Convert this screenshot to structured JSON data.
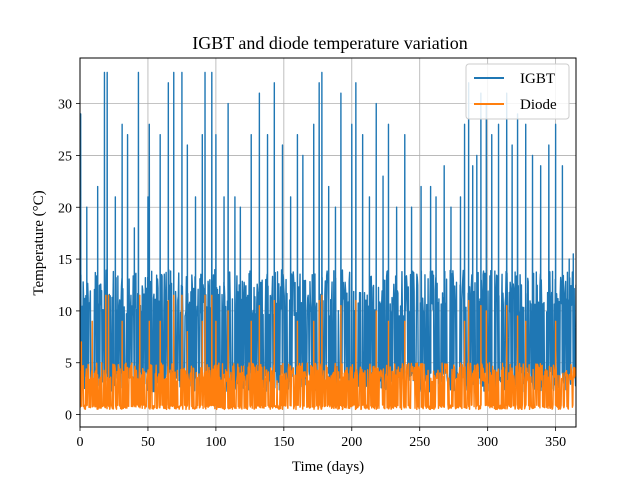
{
  "chart_data": {
    "type": "line",
    "title": "IGBT and diode temperature variation",
    "xlabel": "Time (days)",
    "ylabel": "Temperature (°C)",
    "xlim": [
      0,
      365
    ],
    "ylim": [
      -1.2,
      34.4
    ],
    "xticks": [
      0,
      50,
      100,
      150,
      200,
      250,
      300,
      350
    ],
    "yticks": [
      0,
      5,
      10,
      15,
      20,
      25,
      30
    ],
    "grid": true,
    "legend_position": "top-right",
    "series": [
      {
        "name": "IGBT",
        "color": "#1f77b4",
        "baseline": 4,
        "typical_peak": 14,
        "peaks": [
          {
            "x": 0.5,
            "y": 29
          },
          {
            "x": 5,
            "y": 20
          },
          {
            "x": 13,
            "y": 22
          },
          {
            "x": 18,
            "y": 33
          },
          {
            "x": 20,
            "y": 33
          },
          {
            "x": 26,
            "y": 21
          },
          {
            "x": 31,
            "y": 28
          },
          {
            "x": 35,
            "y": 27
          },
          {
            "x": 40,
            "y": 18
          },
          {
            "x": 43,
            "y": 33
          },
          {
            "x": 50,
            "y": 21
          },
          {
            "x": 51,
            "y": 28
          },
          {
            "x": 59,
            "y": 27
          },
          {
            "x": 65,
            "y": 32
          },
          {
            "x": 69,
            "y": 33
          },
          {
            "x": 75,
            "y": 33
          },
          {
            "x": 79,
            "y": 26
          },
          {
            "x": 85,
            "y": 21
          },
          {
            "x": 90,
            "y": 27
          },
          {
            "x": 92,
            "y": 33
          },
          {
            "x": 97,
            "y": 33
          },
          {
            "x": 100,
            "y": 27
          },
          {
            "x": 106,
            "y": 21
          },
          {
            "x": 109,
            "y": 30
          },
          {
            "x": 114,
            "y": 21
          },
          {
            "x": 118,
            "y": 20
          },
          {
            "x": 126,
            "y": 27
          },
          {
            "x": 132,
            "y": 31
          },
          {
            "x": 138,
            "y": 27
          },
          {
            "x": 143,
            "y": 32
          },
          {
            "x": 149,
            "y": 26
          },
          {
            "x": 155,
            "y": 21
          },
          {
            "x": 160,
            "y": 27
          },
          {
            "x": 164,
            "y": 25
          },
          {
            "x": 172,
            "y": 28
          },
          {
            "x": 176,
            "y": 32
          },
          {
            "x": 178,
            "y": 33
          },
          {
            "x": 183,
            "y": 22
          },
          {
            "x": 188,
            "y": 20
          },
          {
            "x": 192,
            "y": 31
          },
          {
            "x": 200,
            "y": 28
          },
          {
            "x": 203,
            "y": 32
          },
          {
            "x": 208,
            "y": 27
          },
          {
            "x": 213,
            "y": 21
          },
          {
            "x": 218,
            "y": 30
          },
          {
            "x": 223,
            "y": 23
          },
          {
            "x": 227,
            "y": 28
          },
          {
            "x": 233,
            "y": 20
          },
          {
            "x": 239,
            "y": 27
          },
          {
            "x": 244,
            "y": 20
          },
          {
            "x": 251,
            "y": 22
          },
          {
            "x": 258,
            "y": 22
          },
          {
            "x": 262,
            "y": 21
          },
          {
            "x": 268,
            "y": 24
          },
          {
            "x": 273,
            "y": 20
          },
          {
            "x": 280,
            "y": 21
          },
          {
            "x": 283,
            "y": 28
          },
          {
            "x": 286,
            "y": 32
          },
          {
            "x": 289,
            "y": 24
          },
          {
            "x": 292,
            "y": 25
          },
          {
            "x": 295,
            "y": 31
          },
          {
            "x": 299,
            "y": 30
          },
          {
            "x": 303,
            "y": 27
          },
          {
            "x": 308,
            "y": 28
          },
          {
            "x": 314,
            "y": 31
          },
          {
            "x": 318,
            "y": 26
          },
          {
            "x": 322,
            "y": 29
          },
          {
            "x": 328,
            "y": 28
          },
          {
            "x": 333,
            "y": 25
          },
          {
            "x": 339,
            "y": 24
          },
          {
            "x": 345,
            "y": 26
          },
          {
            "x": 350,
            "y": 28
          },
          {
            "x": 355,
            "y": 24
          },
          {
            "x": 360,
            "y": 15
          },
          {
            "x": 363,
            "y": 15.5
          }
        ]
      },
      {
        "name": "Diode",
        "color": "#ff7f0e",
        "baseline": 0.9,
        "typical_peak": 5,
        "peaks": [
          {
            "x": 1,
            "y": 7
          },
          {
            "x": 9,
            "y": 9
          },
          {
            "x": 19,
            "y": 11.5
          },
          {
            "x": 21,
            "y": 11.5
          },
          {
            "x": 31,
            "y": 9
          },
          {
            "x": 44,
            "y": 11.5
          },
          {
            "x": 51,
            "y": 9
          },
          {
            "x": 59,
            "y": 9
          },
          {
            "x": 65,
            "y": 11
          },
          {
            "x": 69,
            "y": 11.5
          },
          {
            "x": 75,
            "y": 11.5
          },
          {
            "x": 79,
            "y": 8
          },
          {
            "x": 90,
            "y": 9
          },
          {
            "x": 92,
            "y": 11.5
          },
          {
            "x": 97,
            "y": 11.5
          },
          {
            "x": 100,
            "y": 9
          },
          {
            "x": 109,
            "y": 10
          },
          {
            "x": 126,
            "y": 9
          },
          {
            "x": 132,
            "y": 10.5
          },
          {
            "x": 143,
            "y": 11
          },
          {
            "x": 160,
            "y": 9
          },
          {
            "x": 172,
            "y": 9
          },
          {
            "x": 176,
            "y": 11
          },
          {
            "x": 178,
            "y": 11.5
          },
          {
            "x": 192,
            "y": 10.5
          },
          {
            "x": 203,
            "y": 11
          },
          {
            "x": 218,
            "y": 10
          },
          {
            "x": 227,
            "y": 9
          },
          {
            "x": 239,
            "y": 9
          },
          {
            "x": 283,
            "y": 9
          },
          {
            "x": 286,
            "y": 11
          },
          {
            "x": 295,
            "y": 10.5
          },
          {
            "x": 299,
            "y": 10
          },
          {
            "x": 314,
            "y": 10.5
          },
          {
            "x": 322,
            "y": 9.5
          },
          {
            "x": 328,
            "y": 9
          },
          {
            "x": 350,
            "y": 9
          }
        ]
      }
    ]
  }
}
